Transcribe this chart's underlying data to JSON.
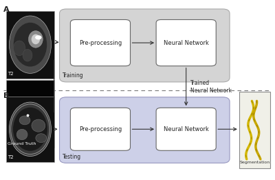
{
  "fig_width": 4.0,
  "fig_height": 2.61,
  "dpi": 100,
  "bg_color": "#ffffff",
  "panel_a_label": "A",
  "panel_b_label": "B",
  "training_box_color": "#d4d4d4",
  "testing_box_color": "#cdd0e8",
  "inner_box_color": "#ffffff",
  "inner_box_edge": "#666666",
  "seg_box_color": "#f5f5f0",
  "seg_box_edge": "#888888",
  "label_t2": "T2",
  "label_ground_truth": "Ground Truth",
  "label_preprocessing": "Pre-processing",
  "label_neural_network": "Neural Network",
  "label_training": "Training",
  "label_testing": "Testing",
  "label_trained_nn": "Trained\nNeural Network",
  "label_segmentation": "Segmentation",
  "dashed_line_color": "#777777",
  "arrow_color": "#333333",
  "text_color": "#222222"
}
